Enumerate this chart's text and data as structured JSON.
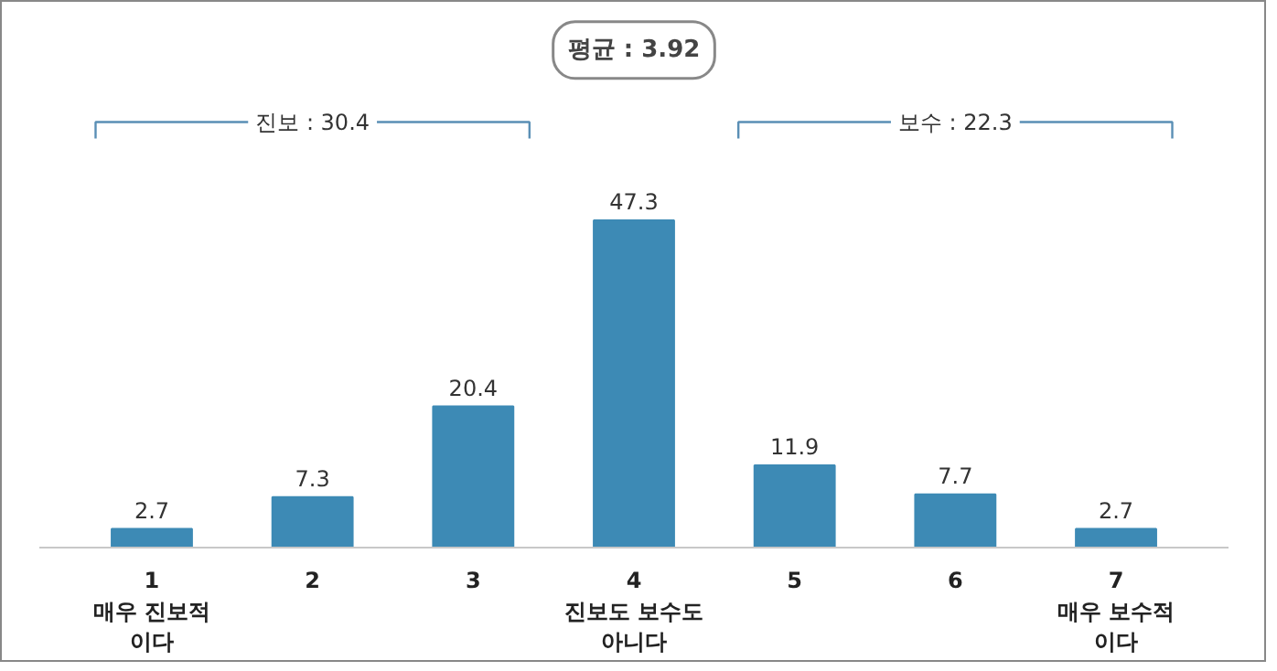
{
  "chart_data": {
    "type": "bar",
    "categories": [
      "1\n매우 진보적\n이다",
      "2",
      "3",
      "4\n진보도 보수도\n아니다",
      "5",
      "6",
      "7\n매우 보수적\n이다"
    ],
    "values": [
      2.7,
      7.3,
      20.4,
      47.3,
      11.9,
      7.7,
      2.7
    ],
    "color": "#3d8ab5",
    "data_labels": true,
    "grid": false,
    "annotations": [
      "평균 : 3.92",
      "진보 : 30.4",
      "보수 : 22.3"
    ]
  }
}
